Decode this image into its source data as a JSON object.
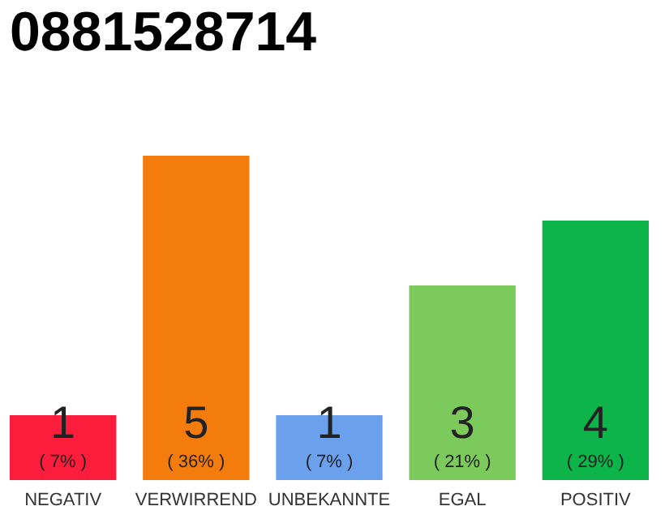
{
  "chart_data": {
    "type": "bar",
    "title": "0881528714",
    "categories": [
      "NEGATIV",
      "VERWIRREND",
      "UNBEKANNTE",
      "EGAL",
      "POSITIV"
    ],
    "values": [
      1,
      5,
      1,
      3,
      4
    ],
    "colors": [
      "#fc1c3c",
      "#f47c0c",
      "#6aa0ec",
      "#7dca5c",
      "#0cb44a"
    ],
    "data_labels": true,
    "annotations": [
      "( 7% )",
      "( 36% )",
      "( 7% )",
      "( 21% )",
      "( 29% )"
    ],
    "tick_labels": "x"
  }
}
